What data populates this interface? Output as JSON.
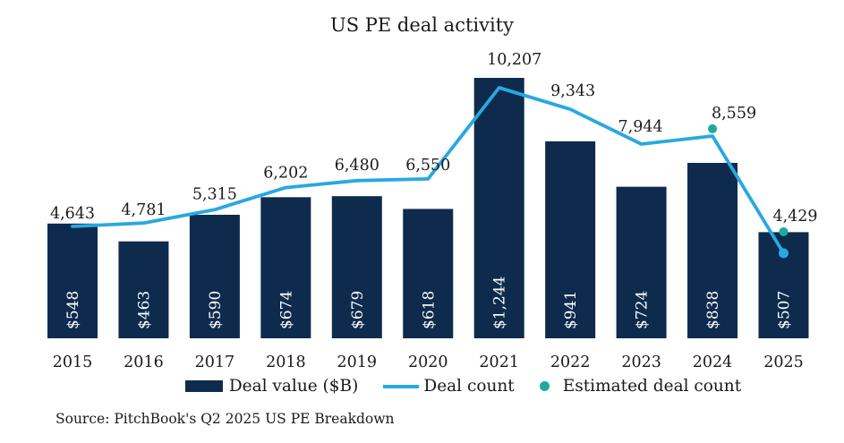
{
  "title": "US PE deal activity",
  "source": "Source: PitchBook's Q2 2025 US PE Breakdown",
  "colors": {
    "bar": "#0e2b4d",
    "line": "#29a8e0",
    "estimated_dot": "#1bab9e",
    "bar_label": "#ffffff",
    "text": "#1a1a1a",
    "background": "#ffffff"
  },
  "legend": {
    "items": [
      {
        "label": "Deal value ($B)",
        "swatch": "bar"
      },
      {
        "label": "Deal count",
        "swatch": "line"
      },
      {
        "label": "Estimated deal count",
        "swatch": "dot"
      }
    ]
  },
  "chart_data": {
    "type": "bar",
    "subtype": "bar + line combo, dual implicit axes, no gridlines, no visible axes",
    "title": "US PE deal activity",
    "categories": [
      "2015",
      "2016",
      "2017",
      "2018",
      "2019",
      "2020",
      "2021",
      "2022",
      "2023",
      "2024",
      "2025"
    ],
    "series": [
      {
        "name": "Deal value ($B)",
        "type": "bar",
        "values": [
          548,
          463,
          590,
          674,
          679,
          618,
          1244,
          941,
          724,
          838,
          507
        ],
        "labels": [
          "$548",
          "$463",
          "$590",
          "$674",
          "$679",
          "$618",
          "$1,244",
          "$941",
          "$724",
          "$838",
          "$507"
        ],
        "label_placement": "inside bar, rotated 90deg, white"
      },
      {
        "name": "Deal count",
        "type": "line",
        "values": [
          4643,
          4781,
          5315,
          6202,
          6480,
          6550,
          10207,
          9343,
          7944,
          8270,
          3570
        ],
        "labels": [
          "4,643",
          "4,781",
          "5,315",
          "6,202",
          "6,480",
          "6,550",
          "10,207",
          "9,343",
          "7,944",
          null,
          null
        ],
        "note": "2024 and 2025 line endpoints are unlabeled in the image; values estimated from plot position. Line ends with a filled blue dot at 2025."
      },
      {
        "name": "Estimated deal count",
        "type": "scatter",
        "categories": [
          "2024",
          "2025"
        ],
        "values": [
          8559,
          4429
        ],
        "labels": [
          "8,559",
          "4,429"
        ]
      }
    ],
    "bar_axis": {
      "unit": "$B",
      "min": 0,
      "visible": false
    },
    "count_axis": {
      "min": 0,
      "visible": false
    },
    "grid": false,
    "legend_position": "bottom"
  }
}
